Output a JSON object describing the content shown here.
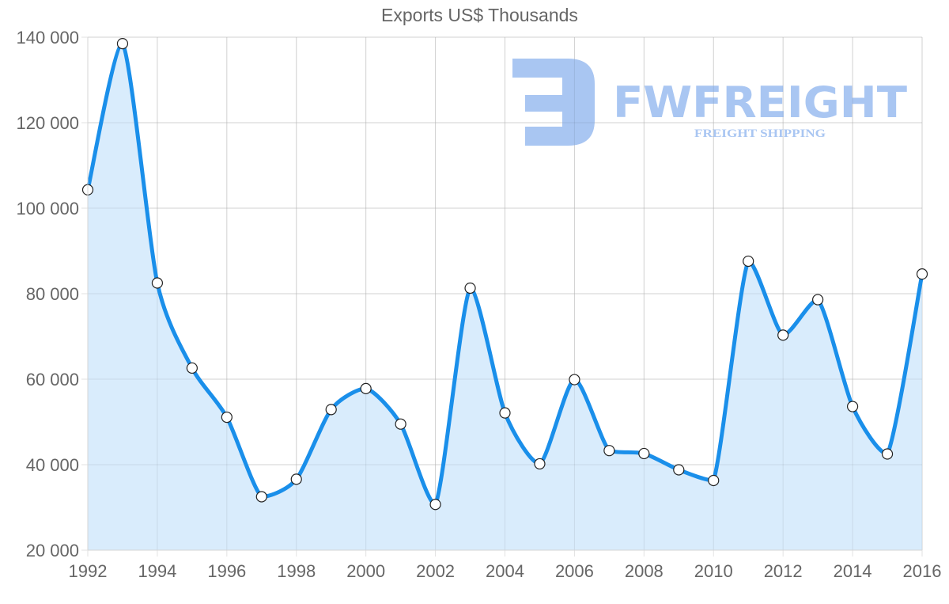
{
  "chart_data": {
    "type": "line",
    "title": "Exports US$ Thousands",
    "xlabel": "",
    "ylabel": "",
    "x": [
      1992,
      1993,
      1994,
      1995,
      1996,
      1997,
      1998,
      1999,
      2000,
      2001,
      2002,
      2003,
      2004,
      2005,
      2006,
      2007,
      2008,
      2009,
      2010,
      2011,
      2012,
      2013,
      2014,
      2015,
      2016
    ],
    "series": [
      {
        "name": "Exports",
        "values": [
          104300,
          138500,
          82500,
          62600,
          51100,
          32500,
          36600,
          52900,
          57800,
          49500,
          30700,
          81300,
          52100,
          40200,
          59900,
          43300,
          42600,
          38800,
          36300,
          87600,
          70300,
          78600,
          53600,
          42500,
          84600
        ],
        "line_color": "#1a8fea",
        "fill_color": "#d9ecfc",
        "marker_fill": "#ffffff",
        "marker_stroke": "#222222",
        "filled_area": true
      }
    ],
    "ylim": [
      20000,
      140000
    ],
    "xlim": [
      1992,
      2016
    ],
    "y_ticks": [
      20000,
      40000,
      60000,
      80000,
      100000,
      120000,
      140000
    ],
    "y_tick_labels": [
      "20 000",
      "40 000",
      "60 000",
      "80 000",
      "100 000",
      "120 000",
      "140 000"
    ],
    "x_ticks": [
      1992,
      1994,
      1996,
      1998,
      2000,
      2002,
      2004,
      2006,
      2008,
      2010,
      2012,
      2014,
      2016
    ],
    "x_tick_labels": [
      "1992",
      "1994",
      "1996",
      "1998",
      "2000",
      "2002",
      "2004",
      "2006",
      "2008",
      "2010",
      "2012",
      "2014",
      "2016"
    ],
    "grid": true,
    "legend": null
  },
  "watermark": {
    "brand": "FWFREIGHT",
    "tagline": "FREIGHT SHIPPING",
    "color": "#a9c6f2"
  }
}
